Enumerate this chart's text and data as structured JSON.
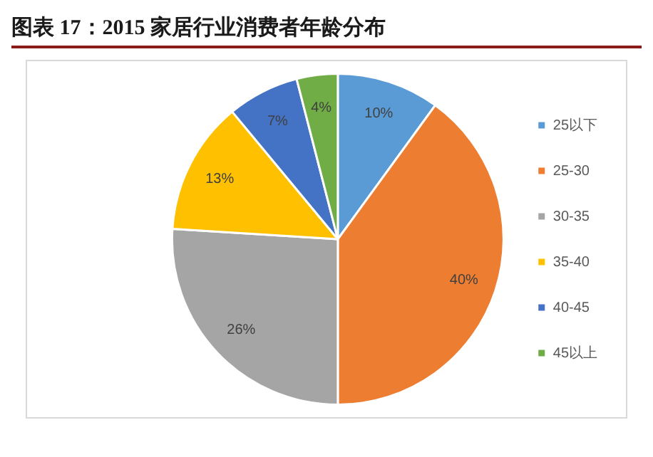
{
  "chart_data": {
    "type": "pie",
    "title": "图表 17：2015 家居行业消费者年龄分布",
    "categories": [
      "25以下",
      "25-30",
      "30-35",
      "35-40",
      "40-45",
      "45以上"
    ],
    "values": [
      10,
      40,
      26,
      13,
      7,
      4
    ],
    "colors": [
      "#5b9bd5",
      "#ed7d31",
      "#a5a5a5",
      "#ffc000",
      "#4472c4",
      "#70ad47"
    ],
    "value_labels": [
      "10%",
      "40%",
      "26%",
      "13%",
      "7%",
      "4%"
    ],
    "legend": "right"
  }
}
